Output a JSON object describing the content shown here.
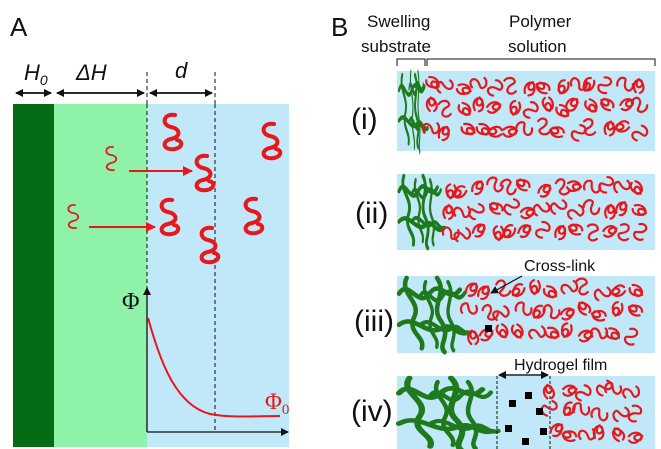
{
  "panel_a": {
    "letter": "A",
    "dims": {
      "h0_main": "H",
      "h0_sub": "0",
      "delta_h": "ΔH",
      "d": "d"
    },
    "phi": "Φ",
    "phi0_main": "Φ",
    "phi0_sub": "0",
    "colors": {
      "substrate": "#056b14",
      "swollen": "#8ef2a8",
      "solution": "#c1e8f8",
      "polymer": "#e8171b",
      "profile": "#e8171b",
      "phi_label": "#111111",
      "phi0_label": "#e8171b"
    }
  },
  "panel_b": {
    "letter": "B",
    "header_left_1": "Swelling",
    "header_left_2": "substrate",
    "header_right_1": "Polymer",
    "header_right_2": "solution",
    "stages": [
      {
        "label": "(i)"
      },
      {
        "label": "(ii)"
      },
      {
        "label": "(iii)",
        "annotation": "Cross-link"
      },
      {
        "label": "(iv)",
        "annotation": "Hydrogel film"
      }
    ],
    "colors": {
      "solution": "#c1e8f8",
      "network": "#1e7a1c",
      "polymer": "#e8171b",
      "crosslink": "#000000"
    }
  }
}
